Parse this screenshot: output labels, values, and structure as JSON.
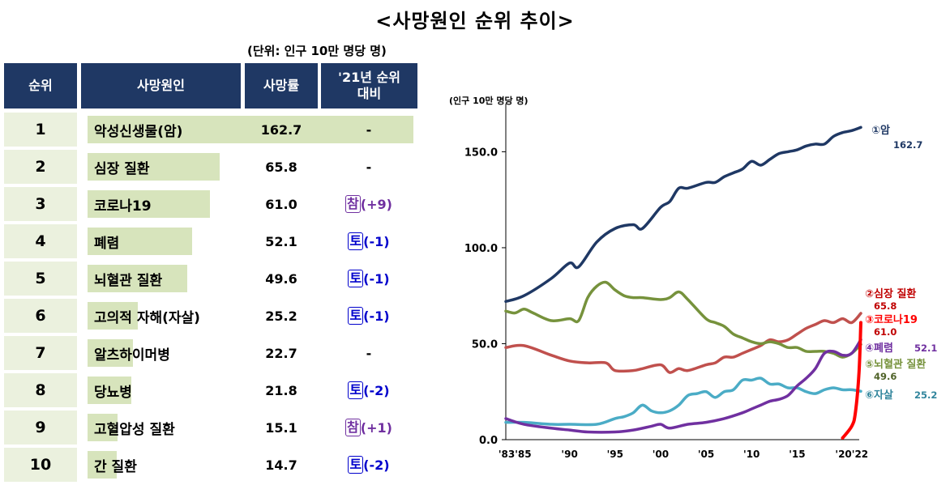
{
  "title": "<사망원인 순위 추이>",
  "unit_note": "(단위: 인구 10만 명당 명)",
  "table": {
    "headers": {
      "rank": "순위",
      "cause": "사망원인",
      "rate": "사망률",
      "change": "'21년 순위 대비"
    },
    "rows": [
      {
        "rank": "1",
        "cause": "악성신생물(암)",
        "rate": "162.7",
        "badge": "",
        "delta": "-"
      },
      {
        "rank": "2",
        "cause": "심장 질환",
        "rate": "65.8",
        "badge": "",
        "delta": "-"
      },
      {
        "rank": "3",
        "cause": "코로나19",
        "rate": "61.0",
        "badge": "참",
        "delta": "(+9)"
      },
      {
        "rank": "4",
        "cause": "폐렴",
        "rate": "52.1",
        "badge": "토",
        "delta": "(-1)"
      },
      {
        "rank": "5",
        "cause": "뇌혈관 질환",
        "rate": "49.6",
        "badge": "토",
        "delta": "(-1)"
      },
      {
        "rank": "6",
        "cause": "고의적 자해(자살)",
        "rate": "25.2",
        "badge": "토",
        "delta": "(-1)"
      },
      {
        "rank": "7",
        "cause": "알츠하이머병",
        "rate": "22.7",
        "badge": "",
        "delta": "-"
      },
      {
        "rank": "8",
        "cause": "당뇨병",
        "rate": "21.8",
        "badge": "토",
        "delta": "(-2)"
      },
      {
        "rank": "9",
        "cause": "고혈압성 질환",
        "rate": "15.1",
        "badge": "참",
        "delta": "(+1)"
      },
      {
        "rank": "10",
        "cause": "간 질환",
        "rate": "14.7",
        "badge": "토",
        "delta": "(-2)"
      }
    ]
  },
  "colors": {
    "header_bg": "#1f3864",
    "rank_bg": "#ebf1de",
    "bar": "#d7e4bc",
    "badge_up": "#7030a0",
    "badge_down": "#0000cc"
  },
  "chart_data": {
    "type": "line",
    "ylabel": "(인구 10만 명당 명)",
    "ylim": [
      0,
      170
    ],
    "xlim": [
      1983,
      2022
    ],
    "yticks": [
      "0.0",
      "50.0",
      "100.0",
      "150.0"
    ],
    "ytick_values": [
      0,
      50,
      100,
      150
    ],
    "xticks": [
      "'83'85",
      "'90",
      "'95",
      "'00",
      "'05",
      "'10",
      "'15",
      "'20'22"
    ],
    "xtick_values": [
      1984,
      1990,
      1995,
      2000,
      2005,
      2010,
      2015,
      2021
    ],
    "grid": false,
    "series": [
      {
        "name": "①암",
        "label_value": "162.7",
        "color": "#1f3864",
        "x": [
          1983,
          1985,
          1988,
          1990,
          1991,
          1993,
          1995,
          1997,
          1998,
          2000,
          2001,
          2002,
          2003,
          2005,
          2006,
          2007,
          2008,
          2009,
          2010,
          2011,
          2012,
          2013,
          2014,
          2015,
          2016,
          2017,
          2018,
          2019,
          2020,
          2021,
          2022
        ],
        "y": [
          72,
          75,
          84,
          92,
          90,
          103,
          110,
          112,
          110,
          121,
          124,
          131,
          131,
          134,
          134,
          137,
          139,
          141,
          145,
          143,
          146,
          149,
          150,
          151,
          153,
          154,
          154,
          158,
          160,
          161,
          162.7
        ]
      },
      {
        "name": "②심장 질환",
        "label_value": "65.8",
        "color": "#c0504d",
        "x": [
          1983,
          1985,
          1988,
          1990,
          1992,
          1994,
          1995,
          1997,
          1998,
          2000,
          2001,
          2002,
          2003,
          2005,
          2006,
          2007,
          2008,
          2009,
          2010,
          2011,
          2012,
          2013,
          2014,
          2015,
          2016,
          2017,
          2018,
          2019,
          2020,
          2021,
          2022
        ],
        "y": [
          48,
          49,
          44,
          41,
          40,
          40,
          36,
          36,
          37,
          39,
          35,
          37,
          36,
          39,
          40,
          43,
          43,
          45,
          47,
          49,
          52,
          51,
          52,
          55,
          58,
          60,
          62,
          61,
          63,
          61,
          65.8
        ]
      },
      {
        "name": "③코로나19",
        "label_value": "61.0",
        "color": "#ff0000",
        "x": [
          2020,
          2021,
          2021.4,
          2021.8,
          2022
        ],
        "y": [
          0.9,
          7,
          14,
          35,
          61.0
        ]
      },
      {
        "name": "④폐렴",
        "label_value": "52.1",
        "color": "#7030a0",
        "x": [
          1983,
          1985,
          1988,
          1990,
          1992,
          1995,
          1997,
          1999,
          2000,
          2001,
          2003,
          2005,
          2007,
          2009,
          2010,
          2011,
          2012,
          2013,
          2014,
          2015,
          2016,
          2017,
          2018,
          2019,
          2020,
          2021,
          2022
        ],
        "y": [
          11,
          8,
          6,
          5,
          4,
          4,
          5,
          7,
          8,
          6,
          8,
          9,
          11,
          14,
          16,
          18,
          20,
          21,
          23,
          28,
          32,
          37,
          45,
          46,
          44,
          45,
          52.1
        ]
      },
      {
        "name": "⑤뇌혈관 질환",
        "label_value": "49.6",
        "color": "#76923c",
        "x": [
          1983,
          1984,
          1985,
          1986,
          1988,
          1990,
          1991,
          1992,
          1993,
          1994,
          1995,
          1996,
          1997,
          1998,
          2000,
          2001,
          2002,
          2003,
          2005,
          2006,
          2007,
          2008,
          2009,
          2010,
          2011,
          2012,
          2013,
          2014,
          2015,
          2016,
          2017,
          2018,
          2019,
          2020,
          2021,
          2022
        ],
        "y": [
          67,
          66,
          68,
          66,
          62,
          63,
          62,
          74,
          80,
          82,
          78,
          75,
          74,
          74,
          73,
          74,
          77,
          73,
          63,
          61,
          59,
          55,
          53,
          51,
          50,
          51,
          50,
          48,
          48,
          46,
          46,
          46,
          45,
          43,
          45,
          49.6
        ]
      },
      {
        "name": "⑥자살",
        "label_value": "25.2",
        "color": "#4bacc6",
        "x": [
          1983,
          1985,
          1988,
          1990,
          1993,
          1995,
          1996,
          1997,
          1998,
          1999,
          2000,
          2001,
          2002,
          2003,
          2004,
          2005,
          2006,
          2007,
          2008,
          2009,
          2010,
          2011,
          2012,
          2013,
          2014,
          2015,
          2016,
          2017,
          2018,
          2019,
          2020,
          2021,
          2022
        ],
        "y": [
          9,
          9,
          8,
          8,
          8,
          11,
          12,
          14,
          18,
          15,
          14,
          15,
          18,
          23,
          24,
          25,
          22,
          25,
          26,
          31,
          31,
          32,
          29,
          29,
          27,
          27,
          25,
          24,
          26,
          27,
          26,
          26,
          25.2
        ]
      }
    ]
  }
}
